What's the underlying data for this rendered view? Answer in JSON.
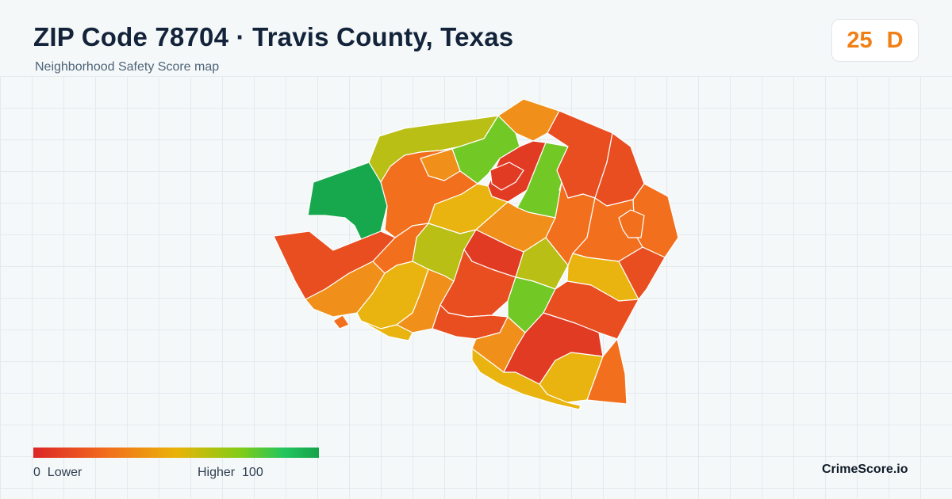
{
  "header": {
    "title": "ZIP Code 78704 · Travis County, Texas",
    "subtitle": "Neighborhood Safety Score map"
  },
  "score": {
    "value": "25",
    "grade": "D",
    "color": "#f08016"
  },
  "legend": {
    "min_value": "0",
    "min_label": "Lower",
    "max_label": "Higher",
    "max_value": "100",
    "gradient": [
      "#dc2626",
      "#f26b1d",
      "#eab308",
      "#84cc16",
      "#22c55e",
      "#16a34a"
    ]
  },
  "map": {
    "boundary_color": "#ffffff",
    "district_colors": {
      "very_low": "#e23b24",
      "low": "#e84e20",
      "low_mid": "#f2701d",
      "mid": "#f0901a",
      "mid_high": "#e9b410",
      "olive": "#b9bf14",
      "light_green": "#72c925",
      "green": "#17a84e"
    }
  },
  "brand": "CrimeScore.io"
}
